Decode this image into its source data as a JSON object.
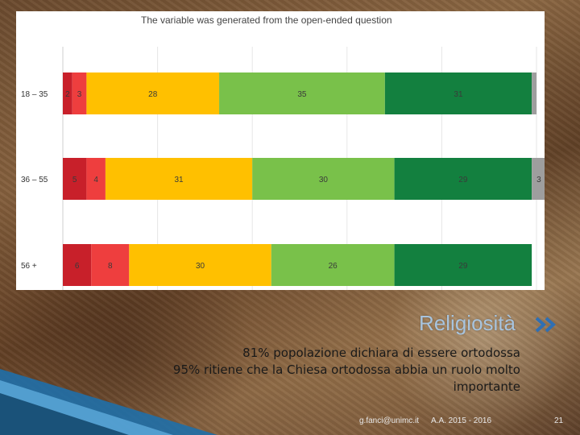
{
  "chart_data": {
    "type": "bar",
    "stacked": true,
    "orientation": "horizontal",
    "note": "The variable was generated from the open-ended question",
    "categories": [
      "18 – 35",
      "36 – 55",
      "56 +"
    ],
    "segment_colors": [
      "#c8202a",
      "#ee3e3e",
      "#ffc000",
      "#79c14a",
      "#13803f",
      "#9e9e9e"
    ],
    "series": [
      {
        "values": [
          2,
          5,
          6
        ]
      },
      {
        "values": [
          3,
          4,
          8
        ]
      },
      {
        "values": [
          28,
          31,
          30
        ]
      },
      {
        "values": [
          35,
          30,
          26
        ]
      },
      {
        "values": [
          31,
          29,
          29
        ]
      },
      {
        "values": [
          1,
          3,
          0
        ]
      }
    ],
    "shown_labels": [
      [
        "2",
        "3",
        "28",
        "35",
        "31",
        ""
      ],
      [
        "5",
        "4",
        "31",
        "30",
        "29",
        "3"
      ],
      [
        "6",
        "8",
        "30",
        "26",
        "29",
        ""
      ]
    ],
    "xlim": [
      0,
      100
    ],
    "grid": true
  },
  "slide": {
    "title": "Religiosità",
    "lines": [
      "81% popolazione dichiara di essere ortodossa",
      "95% ritiene che la Chiesa ortodossa abbia un ruolo molto",
      "importante"
    ],
    "email": "g.fanci@unimc.it",
    "year": "A.A. 2015 - 2016",
    "page": "21"
  },
  "colors": {
    "title": "#a8c4de",
    "arrows": "#2f6fb3"
  }
}
